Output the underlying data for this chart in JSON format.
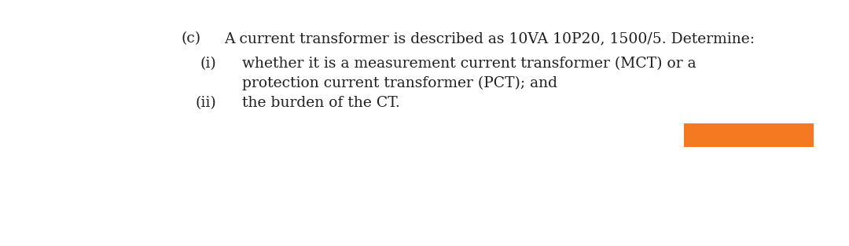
{
  "background_color": "#ffffff",
  "text_color": "#231f20",
  "font_size": 13.5,
  "label_c": "(c)",
  "label_i": "(i)",
  "label_ii": "(ii)",
  "line1": "A current transformer is described as 10VA 10P20, 1500/5. Determine:",
  "line2": "whether it is a measurement current transformer (MCT) or a",
  "line3": "protection current transformer (PCT); and",
  "line4": "the burden of the CT.",
  "rect_color": "#f47920",
  "fig_width": 10.8,
  "fig_height": 3.13,
  "dpi": 100
}
